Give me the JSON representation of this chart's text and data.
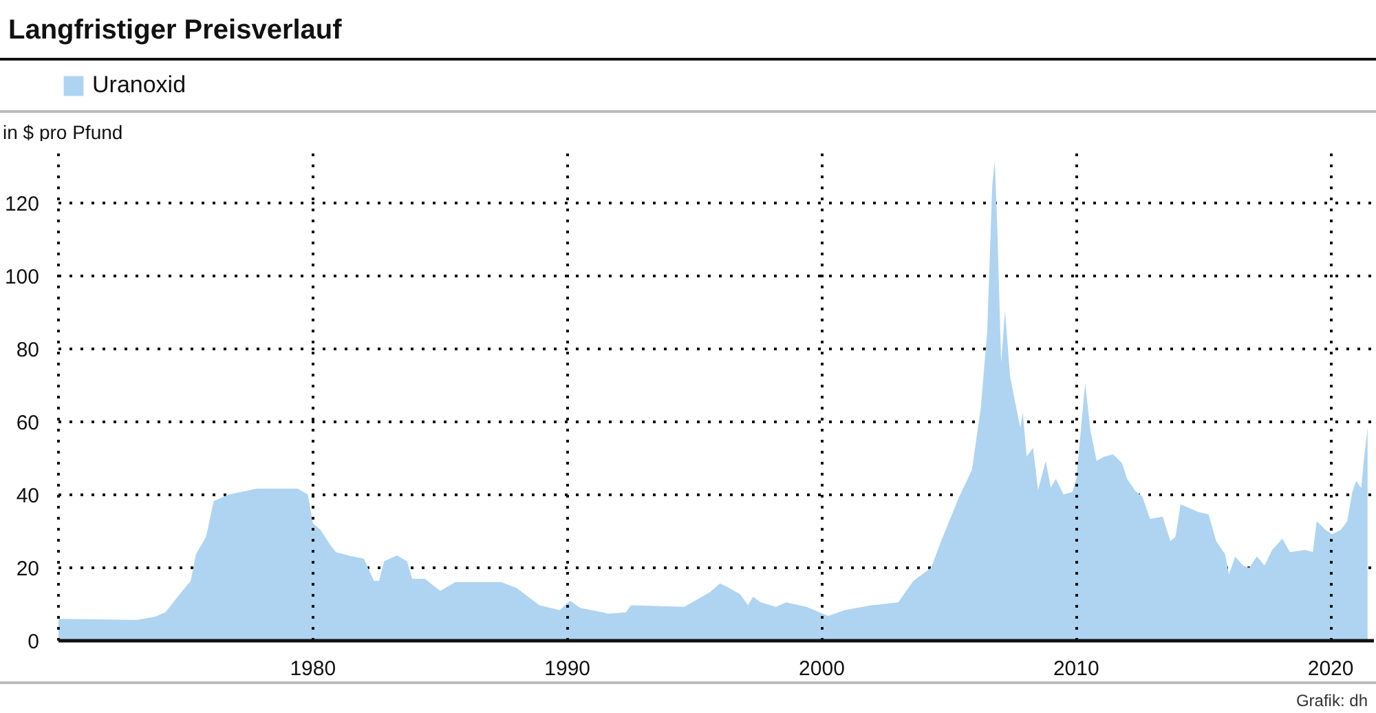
{
  "chart_data": {
    "type": "area",
    "title": "Langfristiger Preisverlauf",
    "ylabel": "in $ pro Pfund",
    "x": [
      1970.0,
      1973.1,
      1973.8,
      1974.2,
      1974.9,
      1975.2,
      1975.4,
      1975.8,
      1976.1,
      1976.7,
      1977.8,
      1979.4,
      1979.8,
      1980.0,
      1980.3,
      1980.7,
      1980.9,
      1981.5,
      1982.0,
      1982.4,
      1982.6,
      1982.8,
      1983.3,
      1983.7,
      1983.9,
      1984.4,
      1985.0,
      1985.6,
      1987.4,
      1988.0,
      1988.9,
      1989.7,
      1990.1,
      1990.5,
      1991.4,
      1991.6,
      1992.3,
      1992.5,
      1994.6,
      1995.0,
      1995.6,
      1996.0,
      1996.3,
      1996.8,
      1997.1,
      1997.3,
      1997.6,
      1998.2,
      1998.6,
      1999.4,
      2000.25,
      2000.9,
      2001.95,
      2003.0,
      2003.6,
      2004.3,
      2004.7,
      2005.4,
      2005.9,
      2006.25,
      2006.5,
      2006.7,
      2006.8,
      2006.9,
      2007.05,
      2007.2,
      2007.4,
      2007.8,
      2007.9,
      2008.05,
      2008.3,
      2008.5,
      2008.8,
      2009.0,
      2009.2,
      2009.5,
      2009.85,
      2010.0,
      2010.2,
      2010.35,
      2010.55,
      2010.8,
      2011.1,
      2011.45,
      2011.8,
      2012.0,
      2012.3,
      2012.6,
      2012.9,
      2013.4,
      2013.7,
      2013.9,
      2014.1,
      2014.4,
      2014.8,
      2015.2,
      2015.5,
      2015.85,
      2016.0,
      2016.25,
      2016.55,
      2016.8,
      2017.1,
      2017.4,
      2017.7,
      2018.1,
      2018.4,
      2019.0,
      2019.3,
      2019.45,
      2019.8,
      2020.05,
      2020.4,
      2020.65,
      2020.85,
      2021.0,
      2021.2,
      2021.3,
      2021.45
    ],
    "series": [
      {
        "name": "Uranoxid",
        "color": "#aed4f1",
        "values": [
          6.0,
          5.7,
          6.6,
          7.8,
          13.9,
          16.4,
          23.7,
          28.5,
          38.3,
          40.1,
          41.7,
          41.7,
          40.1,
          32.2,
          30.4,
          26.1,
          24.3,
          23.2,
          22.5,
          16.4,
          16.4,
          21.8,
          23.4,
          21.8,
          17.0,
          17.0,
          13.7,
          16.1,
          16.1,
          14.5,
          9.7,
          8.4,
          11.0,
          9.0,
          7.8,
          7.4,
          7.8,
          9.7,
          9.3,
          10.9,
          13.3,
          15.7,
          14.7,
          12.7,
          9.7,
          12.1,
          10.5,
          9.3,
          10.5,
          9.3,
          6.8,
          8.4,
          9.7,
          10.5,
          16.4,
          20.0,
          27.5,
          39.5,
          46.8,
          63.9,
          84.7,
          124.9,
          131.6,
          112.7,
          76.1,
          90.7,
          72.4,
          58.4,
          62.7,
          50.5,
          52.9,
          41.3,
          49.3,
          42.0,
          44.4,
          40.1,
          40.8,
          44.4,
          59.1,
          70.6,
          58.0,
          49.3,
          50.5,
          51.1,
          48.7,
          44.4,
          41.3,
          39.5,
          33.4,
          34.0,
          27.3,
          28.5,
          37.4,
          36.5,
          35.3,
          34.7,
          27.3,
          23.7,
          18.2,
          23.1,
          20.6,
          20.0,
          23.1,
          20.6,
          24.9,
          28.0,
          24.3,
          24.9,
          24.3,
          32.8,
          30.4,
          29.2,
          30.4,
          32.8,
          40.8,
          43.8,
          41.9,
          49.3,
          58.4
        ]
      }
    ],
    "xlim": [
      1970,
      2021.7
    ],
    "xticks": [
      1980,
      1990,
      2000,
      2010,
      2020
    ],
    "ylim": [
      0,
      134
    ],
    "yticks": [
      0,
      20,
      40,
      60,
      80,
      100,
      120
    ],
    "grid": true,
    "legend": "top left",
    "annotations": [
      "Grafik: dh"
    ]
  }
}
